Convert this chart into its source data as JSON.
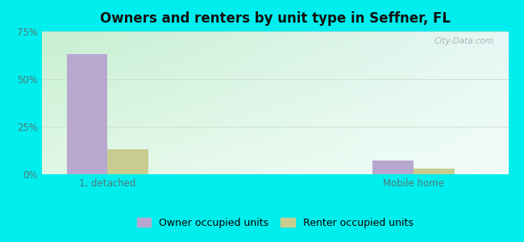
{
  "title": "Owners and renters by unit type in Seffner, FL",
  "categories": [
    "1, detached",
    "Mobile home"
  ],
  "owner_values": [
    63,
    7
  ],
  "renter_values": [
    13,
    3
  ],
  "owner_color": "#b8a8d0",
  "renter_color": "#c8cc8e",
  "ylim_max": 75,
  "yticks": [
    0,
    25,
    50,
    75
  ],
  "ytick_labels": [
    "0%",
    "25%",
    "50%",
    "75%"
  ],
  "outer_bg": "#00eeee",
  "bar_width": 0.28,
  "group_positions": [
    0.45,
    2.55
  ],
  "xlim": [
    0.0,
    3.2
  ],
  "legend_owner": "Owner occupied units",
  "legend_renter": "Renter occupied units",
  "watermark": "City-Data.com",
  "title_fontsize": 12,
  "tick_fontsize": 8.5,
  "legend_fontsize": 9,
  "bg_left": "#c8e8c0",
  "bg_right": "#e8f4f0",
  "bg_top": "#daf0e8",
  "bg_bottom": "#e8f8f0"
}
